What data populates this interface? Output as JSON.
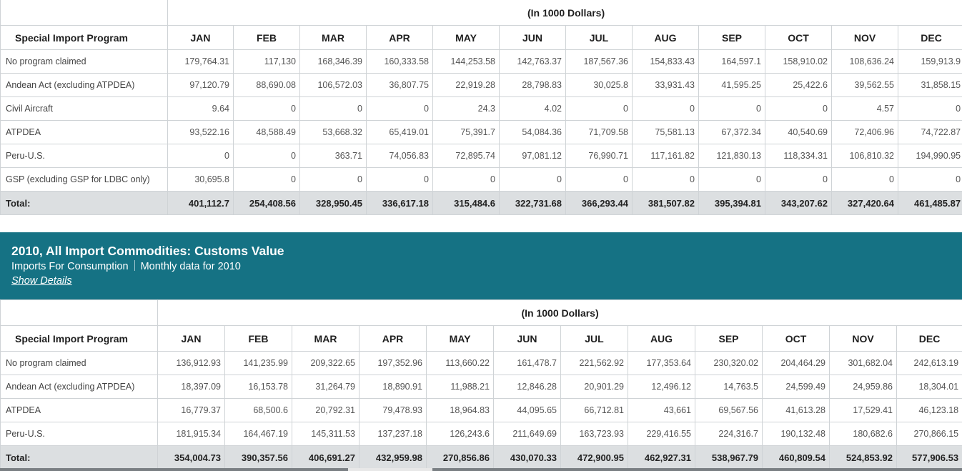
{
  "table1": {
    "unit_label": "(In 1000 Dollars)",
    "program_header": "Special Import Program",
    "months": [
      "JAN",
      "FEB",
      "MAR",
      "APR",
      "MAY",
      "JUN",
      "JUL",
      "AUG",
      "SEP",
      "OCT",
      "NOV",
      "DEC"
    ],
    "rows": [
      {
        "label": "No program claimed",
        "values": [
          "179,764.31",
          "117,130",
          "168,346.39",
          "160,333.58",
          "144,253.58",
          "142,763.37",
          "187,567.36",
          "154,833.43",
          "164,597.1",
          "158,910.02",
          "108,636.24",
          "159,913.9"
        ]
      },
      {
        "label": "Andean Act (excluding ATPDEA)",
        "values": [
          "97,120.79",
          "88,690.08",
          "106,572.03",
          "36,807.75",
          "22,919.28",
          "28,798.83",
          "30,025.8",
          "33,931.43",
          "41,595.25",
          "25,422.6",
          "39,562.55",
          "31,858.15"
        ]
      },
      {
        "label": "Civil Aircraft",
        "values": [
          "9.64",
          "0",
          "0",
          "0",
          "24.3",
          "4.02",
          "0",
          "0",
          "0",
          "0",
          "4.57",
          "0"
        ]
      },
      {
        "label": "ATPDEA",
        "values": [
          "93,522.16",
          "48,588.49",
          "53,668.32",
          "65,419.01",
          "75,391.7",
          "54,084.36",
          "71,709.58",
          "75,581.13",
          "67,372.34",
          "40,540.69",
          "72,406.96",
          "74,722.87"
        ]
      },
      {
        "label": "Peru-U.S.",
        "values": [
          "0",
          "0",
          "363.71",
          "74,056.83",
          "72,895.74",
          "97,081.12",
          "76,990.71",
          "117,161.82",
          "121,830.13",
          "118,334.31",
          "106,810.32",
          "194,990.95"
        ]
      },
      {
        "label": "GSP (excluding GSP for LDBC only)",
        "values": [
          "30,695.8",
          "0",
          "0",
          "0",
          "0",
          "0",
          "0",
          "0",
          "0",
          "0",
          "0",
          "0"
        ]
      }
    ],
    "total": {
      "label": "Total:",
      "values": [
        "401,112.7",
        "254,408.56",
        "328,950.45",
        "336,617.18",
        "315,484.6",
        "322,731.68",
        "366,293.44",
        "381,507.82",
        "395,394.81",
        "343,207.62",
        "327,420.64",
        "461,485.87"
      ]
    }
  },
  "section2": {
    "title": "2010, All Import Commodities: Customs Value",
    "subtitle_left": "Imports For Consumption",
    "subtitle_right": "Monthly data for 2010",
    "details_link": "Show Details"
  },
  "table2": {
    "unit_label": "(In 1000 Dollars)",
    "program_header": "Special Import Program",
    "months": [
      "JAN",
      "FEB",
      "MAR",
      "APR",
      "MAY",
      "JUN",
      "JUL",
      "AUG",
      "SEP",
      "OCT",
      "NOV",
      "DEC"
    ],
    "rows": [
      {
        "label": "No program claimed",
        "values": [
          "136,912.93",
          "141,235.99",
          "209,322.65",
          "197,352.96",
          "113,660.22",
          "161,478.7",
          "221,562.92",
          "177,353.64",
          "230,320.02",
          "204,464.29",
          "301,682.04",
          "242,613.19"
        ]
      },
      {
        "label": "Andean Act (excluding ATPDEA)",
        "values": [
          "18,397.09",
          "16,153.78",
          "31,264.79",
          "18,890.91",
          "11,988.21",
          "12,846.28",
          "20,901.29",
          "12,496.12",
          "14,763.5",
          "24,599.49",
          "24,959.86",
          "18,304.01"
        ]
      },
      {
        "label": "ATPDEA",
        "values": [
          "16,779.37",
          "68,500.6",
          "20,792.31",
          "79,478.93",
          "18,964.83",
          "44,095.65",
          "66,712.81",
          "43,661",
          "69,567.56",
          "41,613.28",
          "17,529.41",
          "46,123.18"
        ]
      },
      {
        "label": "Peru-U.S.",
        "values": [
          "181,915.34",
          "164,467.19",
          "145,311.53",
          "137,237.18",
          "126,243.6",
          "211,649.69",
          "163,723.93",
          "229,416.55",
          "224,316.7",
          "190,132.48",
          "180,682.6",
          "270,866.15"
        ]
      }
    ],
    "total": {
      "label": "Total:",
      "values": [
        "354,004.73",
        "390,357.56",
        "406,691.27",
        "432,959.98",
        "270,856.86",
        "430,070.33",
        "472,900.95",
        "462,927.31",
        "538,967.79",
        "460,809.54",
        "524,853.92",
        "577,906.53"
      ]
    }
  }
}
